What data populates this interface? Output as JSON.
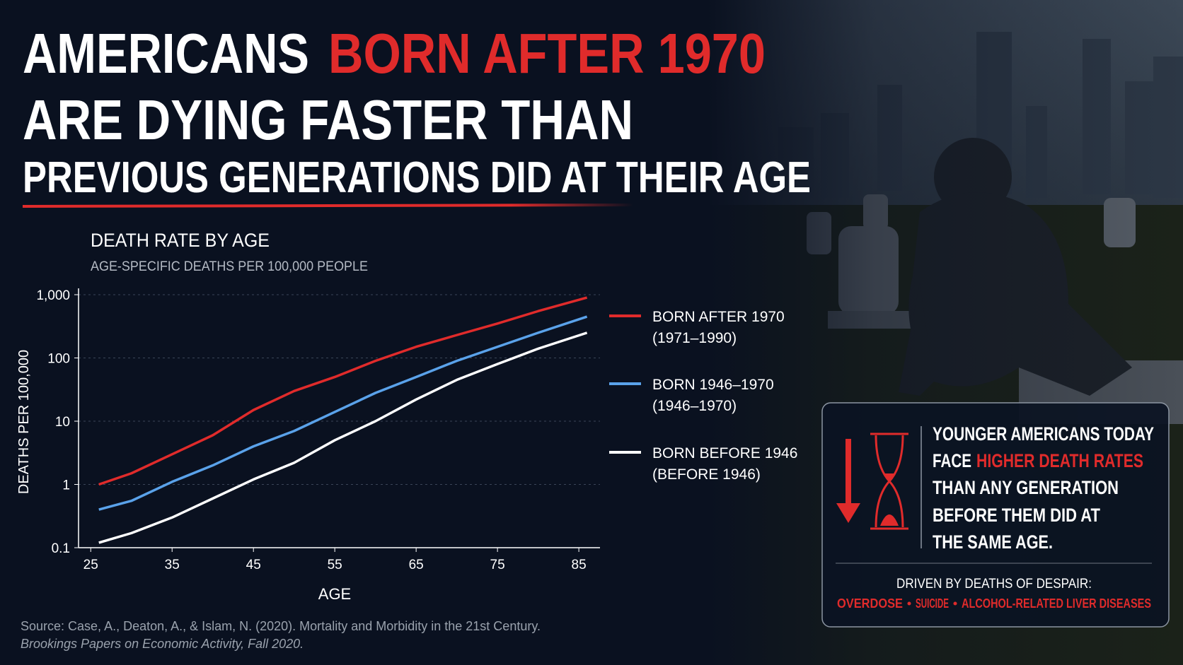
{
  "headline": {
    "line1_white": "AMERICANS",
    "line1_red": "BORN AFTER 1970",
    "line2": "ARE DYING FASTER THAN",
    "line3": "PREVIOUS GENERATIONS DID AT THEIR AGE"
  },
  "chart_data": {
    "type": "line",
    "title": "DEATH RATE BY AGE",
    "subtitle": "AGE-SPECIFIC DEATHS PER 100,000 PEOPLE",
    "x_label": "AGE",
    "y_label": "DEATHS PER 100,000",
    "log_y": true,
    "x": [
      26,
      30,
      35,
      40,
      45,
      50,
      55,
      60,
      65,
      70,
      75,
      80,
      86
    ],
    "series": [
      {
        "name": "BORN AFTER 1970",
        "note": "(1971–1990)",
        "color": "#e02b2b",
        "values": [
          1.0,
          1.5,
          3,
          6,
          15,
          30,
          50,
          90,
          150,
          230,
          350,
          550,
          900
        ]
      },
      {
        "name": "BORN 1946–1970",
        "note": "(1946–1970)",
        "color": "#5aa2ea",
        "values": [
          0.4,
          0.55,
          1.1,
          2,
          4,
          7,
          14,
          28,
          50,
          90,
          150,
          250,
          450
        ]
      },
      {
        "name": "BORN BEFORE 1946",
        "note": "(BEFORE 1946)",
        "color": "#ffffff",
        "values": [
          0.12,
          0.17,
          0.3,
          0.6,
          1.2,
          2.2,
          5,
          10,
          22,
          45,
          80,
          140,
          250
        ]
      }
    ],
    "xlim": [
      23.5,
      87.6
    ],
    "xticks": [
      25,
      35,
      45,
      55,
      65,
      75,
      85
    ],
    "ylim": [
      0.1,
      1000
    ],
    "yticks": [
      0.1,
      1,
      10,
      100,
      {
        "value": 1000,
        "label": "1,000"
      }
    ],
    "grid": true,
    "source": "Source: Case, A., Deaton, A., & Islam, N. (2020). Mortality and Morbidity in the 21st Century.",
    "source_journal": "Brookings Papers on Economic Activity, Fall 2020."
  },
  "callout": {
    "line1": "YOUNGER AMERICANS TODAY",
    "line2_a": "FACE",
    "line2_b": "HIGHER DEATH RATES",
    "line3": "THAN ANY GENERATION",
    "line4": "BEFORE THEM DID AT",
    "line5": "THE SAME AGE.",
    "driver": "DRIVEN BY DEATHS OF DESPAIR:",
    "causes": [
      "OVERDOSE",
      "SUICIDE",
      "ALCOHOL-RELATED LIVER DISEASES"
    ]
  }
}
